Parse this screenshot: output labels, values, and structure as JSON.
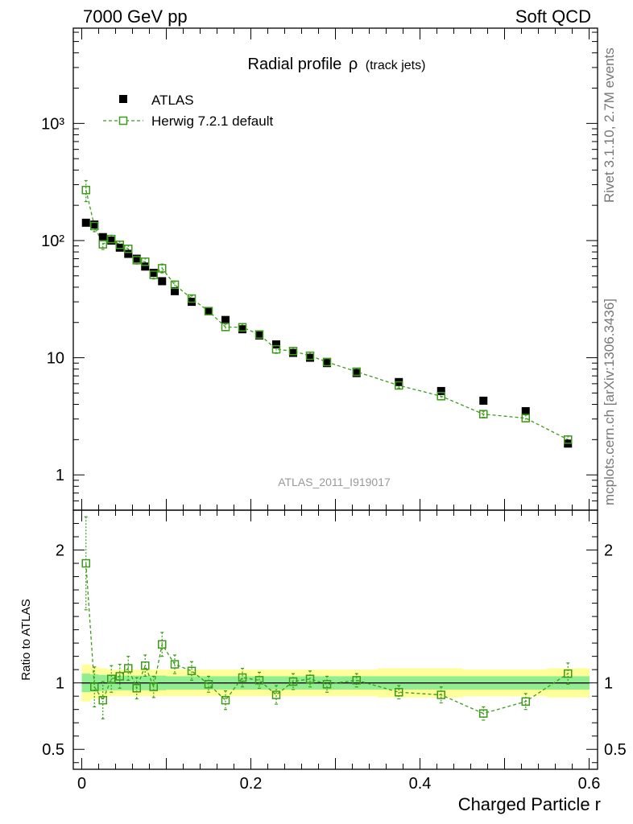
{
  "header": {
    "left": "7000 GeV pp",
    "right": "Soft QCD"
  },
  "side_labels": {
    "rivet": "Rivet 3.1.10,  2.7M events",
    "mcplots": "mcplots.cern.ch [arXiv:1306.3436]"
  },
  "colors": {
    "data": "#000000",
    "mc": "#3d9b1a",
    "band_inner": "#90ee90",
    "band_outer": "#ffff99"
  },
  "chart_data": {
    "type": "scatter",
    "title_main": "Radial profile",
    "title_symbol": "ρ",
    "title_sub": "(track jets)",
    "analysis_label": "ATLAS_2011_I919017",
    "xlabel": "Charged Particle r",
    "xlim": [
      -0.01,
      0.61
    ],
    "x_ticks": [
      "0",
      "0.2",
      "0.4",
      "0.6"
    ],
    "x_tick_values": [
      0,
      0.2,
      0.4,
      0.6
    ],
    "legend": [
      {
        "name": "ATLAS",
        "style": "filled-square"
      },
      {
        "name": "Herwig 7.2.1 default",
        "style": "open-square-dashed"
      }
    ],
    "main": {
      "yscale": "log",
      "ylim": [
        0.5,
        6500
      ],
      "y_ticks": [
        "1",
        "10",
        "10²",
        "10³"
      ],
      "y_tick_values": [
        1,
        10,
        100,
        1000
      ],
      "x": [
        0.005,
        0.015,
        0.025,
        0.035,
        0.045,
        0.055,
        0.065,
        0.075,
        0.085,
        0.095,
        0.11,
        0.13,
        0.15,
        0.17,
        0.19,
        0.21,
        0.23,
        0.25,
        0.27,
        0.29,
        0.325,
        0.375,
        0.425,
        0.475,
        0.525,
        0.575
      ],
      "atlas": [
        142,
        137,
        107,
        100,
        87,
        77,
        70,
        60,
        53,
        45,
        37,
        30,
        25,
        21,
        17.5,
        15.5,
        13,
        11,
        10,
        9,
        7.4,
        6.2,
        5.2,
        4.3,
        3.5,
        1.85
      ],
      "herwig": [
        270,
        133,
        93,
        103,
        92,
        85,
        68,
        66,
        51,
        58,
        42,
        32,
        25,
        18.3,
        18.2,
        15.8,
        11.8,
        11.4,
        10.4,
        9.2,
        7.6,
        5.8,
        4.7,
        3.3,
        3.05,
        2.0
      ],
      "herwig_err": [
        55,
        14,
        9,
        8,
        7,
        6,
        5,
        5,
        4,
        5,
        3,
        2,
        1.5,
        1.2,
        1.2,
        1.0,
        0.9,
        0.8,
        0.7,
        0.6,
        0.4,
        0.3,
        0.3,
        0.2,
        0.2,
        0.15
      ]
    },
    "ratio": {
      "ylabel": "Ratio to ATLAS",
      "ylim": [
        0.35,
        2.3
      ],
      "y_ticks": [
        "0.5",
        "1",
        "2"
      ],
      "y_tick_values": [
        0.5,
        1,
        2
      ],
      "values": [
        1.9,
        0.97,
        0.87,
        1.03,
        1.05,
        1.11,
        0.96,
        1.13,
        0.97,
        1.29,
        1.14,
        1.09,
        0.99,
        0.87,
        1.04,
        1.02,
        0.91,
        1.01,
        1.03,
        0.99,
        1.02,
        0.93,
        0.91,
        0.77,
        0.86,
        1.07
      ],
      "errors": [
        0.35,
        0.15,
        0.14,
        0.1,
        0.09,
        0.09,
        0.08,
        0.08,
        0.08,
        0.09,
        0.07,
        0.07,
        0.06,
        0.07,
        0.07,
        0.06,
        0.07,
        0.06,
        0.06,
        0.06,
        0.05,
        0.05,
        0.06,
        0.05,
        0.06,
        0.08
      ],
      "band_inner": [
        0.07,
        0.065,
        0.06,
        0.055,
        0.055,
        0.055,
        0.055,
        0.055,
        0.055,
        0.055,
        0.05,
        0.05,
        0.05,
        0.05,
        0.05,
        0.05,
        0.05,
        0.05,
        0.05,
        0.05,
        0.05,
        0.05,
        0.05,
        0.05,
        0.05,
        0.05
      ],
      "band_outer": [
        0.14,
        0.12,
        0.11,
        0.1,
        0.1,
        0.1,
        0.1,
        0.1,
        0.1,
        0.1,
        0.1,
        0.1,
        0.1,
        0.1,
        0.1,
        0.1,
        0.1,
        0.1,
        0.1,
        0.1,
        0.1,
        0.11,
        0.11,
        0.1,
        0.1,
        0.11
      ]
    }
  }
}
